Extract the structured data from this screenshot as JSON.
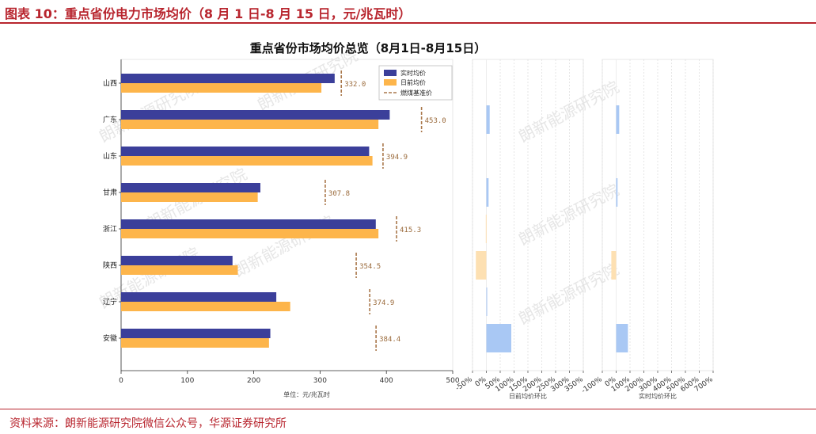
{
  "header": {
    "title": "图表 10：重点省份电力市场均价（8 月 1 日-8 月 15 日，元/兆瓦时）"
  },
  "footer": {
    "source": "资料来源：朗新能源研究院微信公众号，华源证券研究所"
  },
  "watermark": "朗新能源研究院",
  "colors": {
    "realtime": "#3b3f9a",
    "dayahead": "#fdb54b",
    "benchmark": "#a9774a",
    "ring_pos": "#a9c8f4",
    "ring_neg": "#fde0b2"
  },
  "chart_data": [
    {
      "type": "bar",
      "orientation": "horizontal",
      "title": "重点省份市场均价总览（8月1日-8月15日）",
      "xlabel": "单位：元/兆瓦时",
      "xlim": [
        0,
        500
      ],
      "xticks": [
        0,
        100,
        200,
        300,
        400,
        500
      ],
      "grid": false,
      "legend_position": "top-right",
      "categories": [
        "山西",
        "广东",
        "山东",
        "甘肃",
        "浙江",
        "陕西",
        "辽宁",
        "安徽"
      ],
      "series": [
        {
          "name": "实时均价",
          "values": [
            322,
            405,
            374,
            210,
            384,
            168,
            234,
            225
          ]
        },
        {
          "name": "日前均价",
          "values": [
            302,
            388,
            379,
            206,
            388,
            176,
            255,
            223
          ]
        }
      ],
      "benchmark": {
        "name": "燃煤基准价",
        "values": [
          332.0,
          453.0,
          394.9,
          307.8,
          415.3,
          354.5,
          374.9,
          384.4
        ],
        "labels": [
          "332.0",
          "453.0",
          "394.9",
          "307.8",
          "415.3",
          "354.5",
          "374.9",
          "384.4"
        ]
      }
    },
    {
      "type": "bar",
      "orientation": "horizontal",
      "xlabel": "日前均价环比",
      "xlim": [
        -50,
        350
      ],
      "xticks": [
        -50,
        0,
        50,
        100,
        150,
        200,
        250,
        300,
        350
      ],
      "xtick_labels": [
        "-50%",
        "0%",
        "50%",
        "100%",
        "150%",
        "200%",
        "250%",
        "300%",
        "350%"
      ],
      "grid": true,
      "categories": [
        "山西",
        "广东",
        "山东",
        "甘肃",
        "浙江",
        "陕西",
        "辽宁",
        "安徽"
      ],
      "values": [
        0,
        12,
        0,
        8,
        -2,
        -38,
        3,
        90
      ]
    },
    {
      "type": "bar",
      "orientation": "horizontal",
      "xlabel": "实时均价环比",
      "xlim": [
        -100,
        700
      ],
      "xticks": [
        -100,
        0,
        100,
        200,
        300,
        400,
        500,
        600,
        700
      ],
      "xtick_labels": [
        "-100%",
        "0%",
        "100%",
        "200%",
        "300%",
        "400%",
        "500%",
        "600%",
        "700%"
      ],
      "grid": true,
      "categories": [
        "山西",
        "广东",
        "山东",
        "甘肃",
        "浙江",
        "陕西",
        "辽宁",
        "安徽"
      ],
      "values": [
        0,
        22,
        0,
        10,
        0,
        -35,
        0,
        85
      ]
    }
  ]
}
